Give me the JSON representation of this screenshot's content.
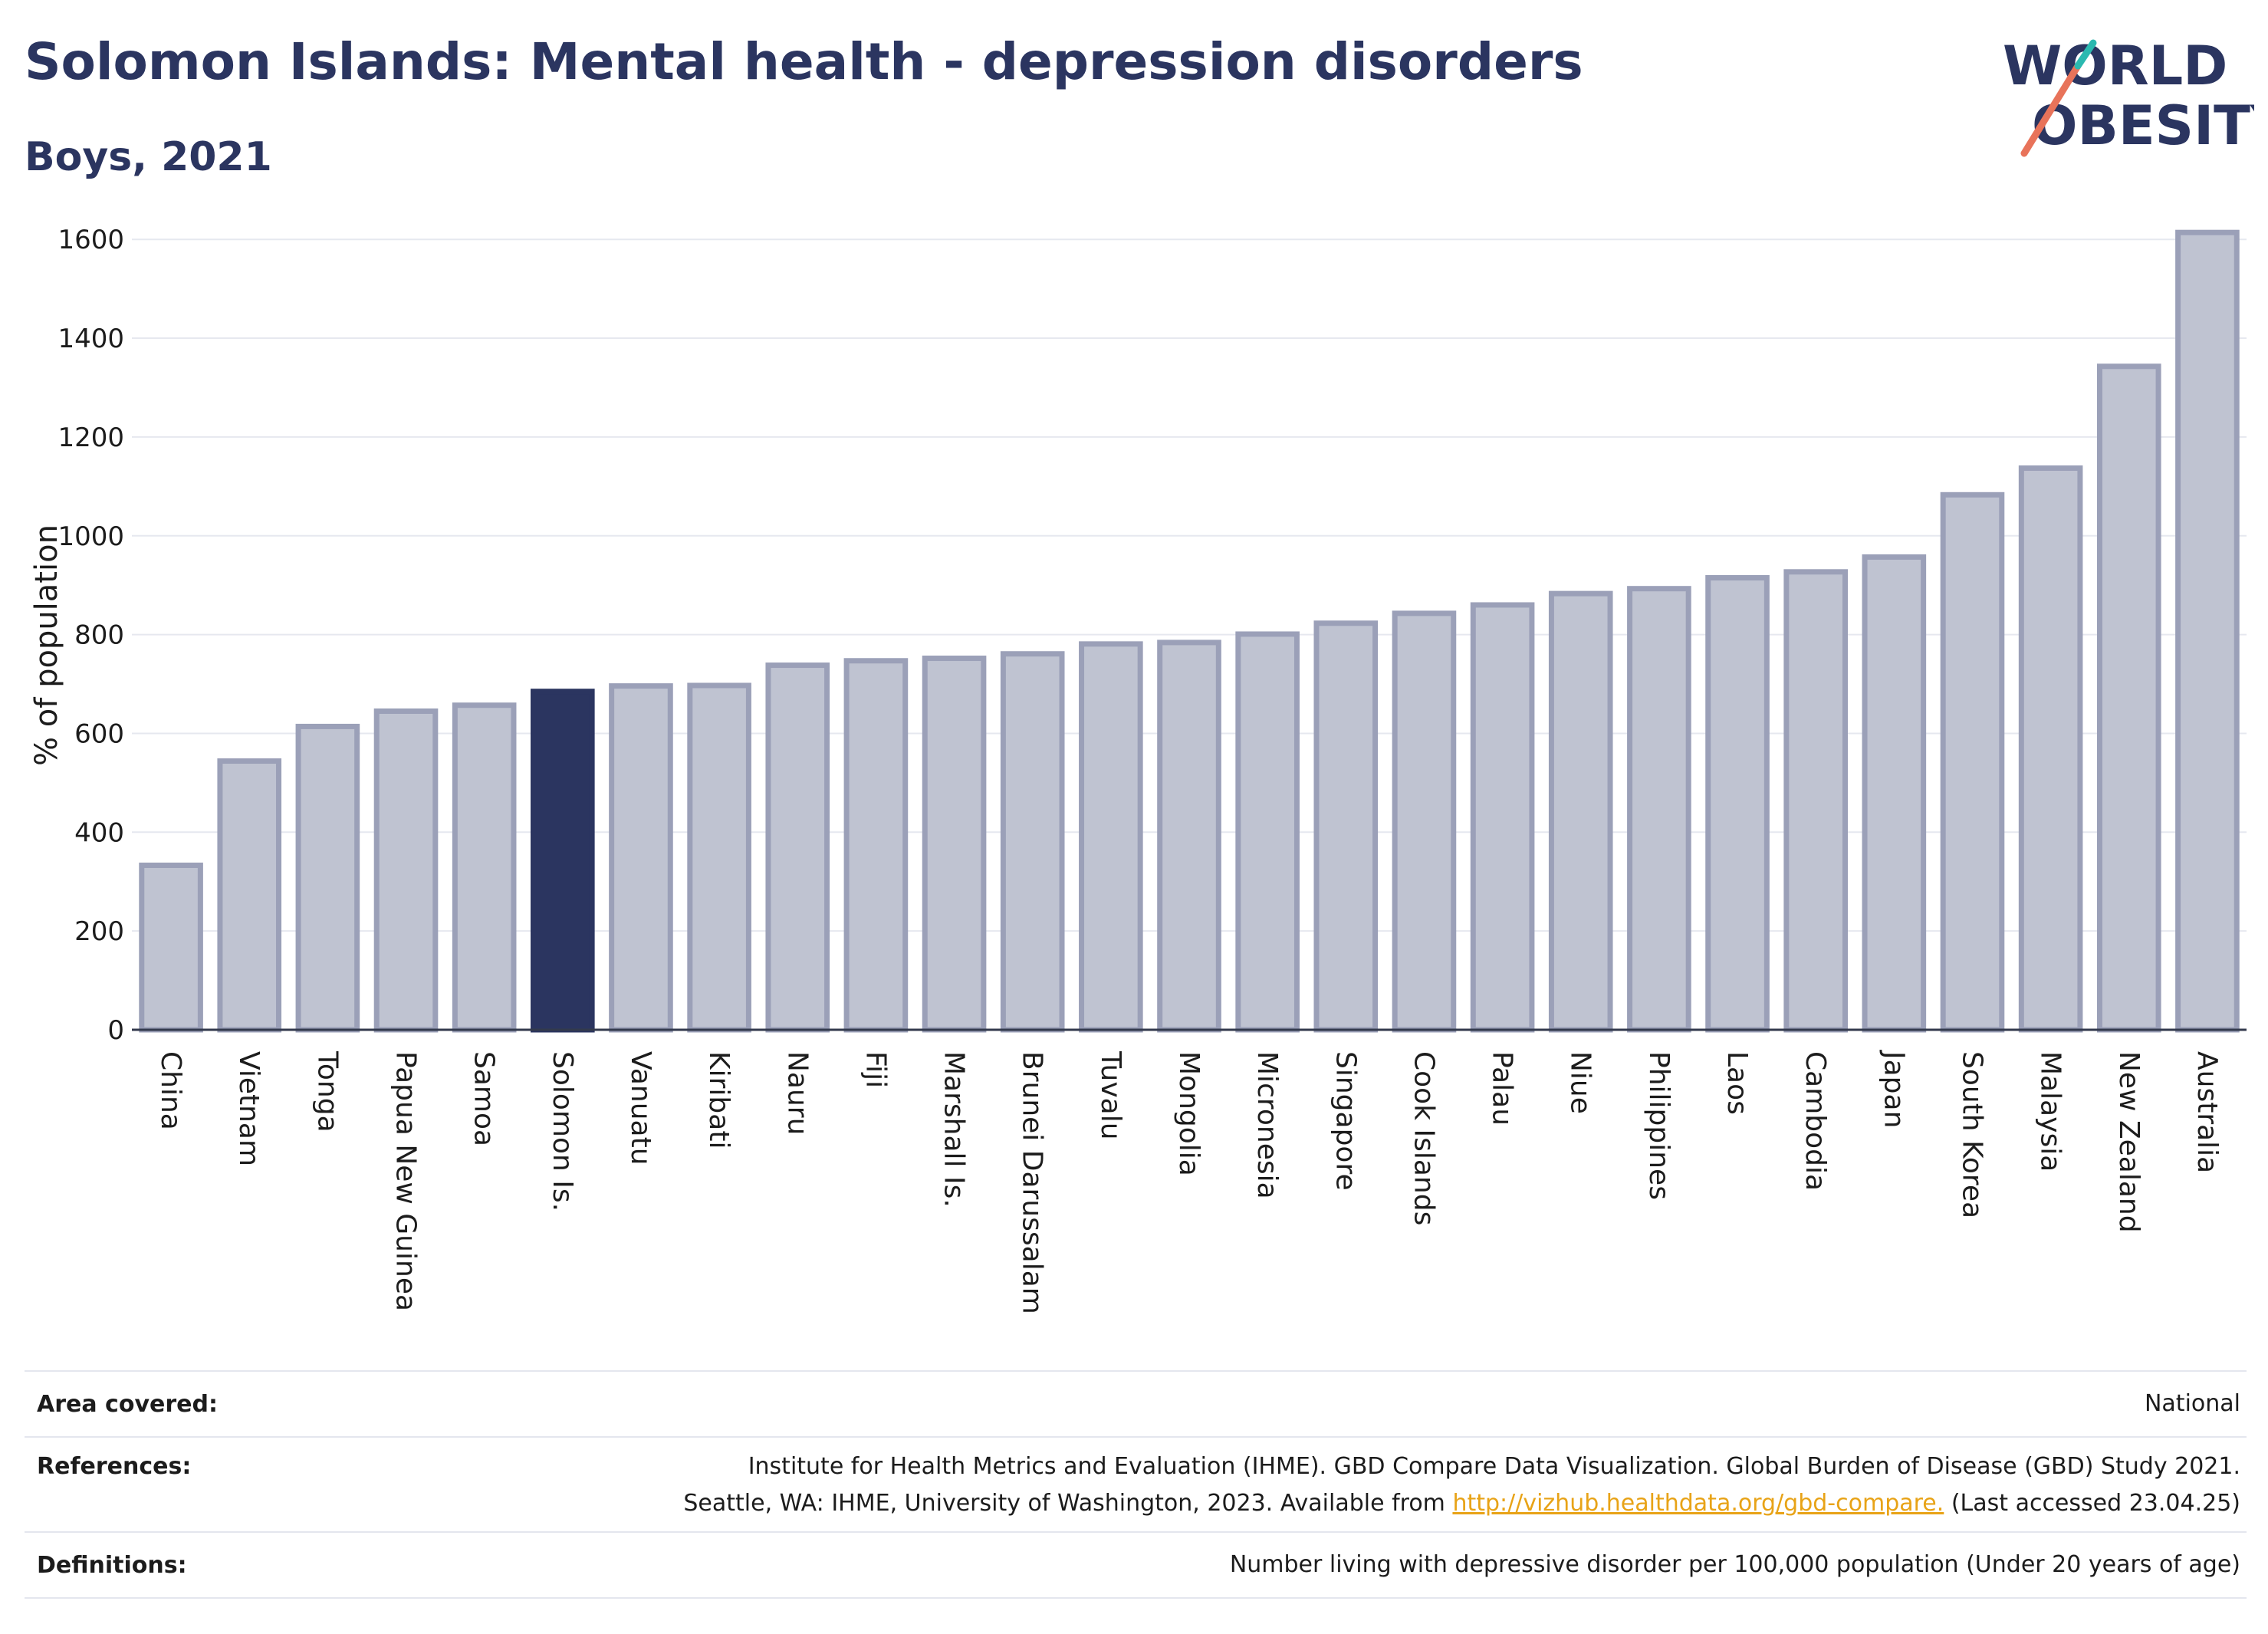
{
  "header": {
    "title": "Solomon Islands: Mental health - depression disorders",
    "subtitle": "Boys, 2021"
  },
  "logo": {
    "line1": "WORLD",
    "line2": "OBESITY",
    "accent_color": "#e8735a",
    "accent_color2": "#2bb9b0"
  },
  "colors": {
    "bar": "#bfc3d1",
    "bar_stroke": "#9ba0b8",
    "highlight": "#2b3560"
  },
  "chart_data": {
    "type": "bar",
    "title": "Solomon Islands: Mental health - depression disorders",
    "subtitle": "Boys, 2021",
    "ylabel": "% of population",
    "xlabel": "",
    "ylim": [
      0,
      1650
    ],
    "yticks": [
      0,
      200,
      400,
      600,
      800,
      1000,
      1200,
      1400,
      1600
    ],
    "grid": true,
    "highlight": "Solomon Is.",
    "categories": [
      "China",
      "Vietnam",
      "Tonga",
      "Papua New Guinea",
      "Samoa",
      "Solomon Is.",
      "Vanuatu",
      "Kiribati",
      "Nauru",
      "Fiji",
      "Marshall Is.",
      "Brunei Darussalam",
      "Tuvalu",
      "Mongolia",
      "Micronesia",
      "Singapore",
      "Cook Islands",
      "Palau",
      "Niue",
      "Philippines",
      "Laos",
      "Cambodia",
      "Japan",
      "South Korea",
      "Malaysia",
      "New Zealand",
      "Australia"
    ],
    "values": [
      333,
      544,
      614,
      645,
      657,
      685,
      696,
      697,
      738,
      747,
      752,
      761,
      781,
      784,
      801,
      823,
      843,
      860,
      883,
      893,
      915,
      927,
      957,
      1083,
      1137,
      1343,
      1614
    ]
  },
  "info": {
    "area_label": "Area covered:",
    "area_value": "National",
    "references_label": "References:",
    "references_line1": "Institute for Health Metrics and Evaluation (IHME). GBD Compare Data Visualization. Global Burden of Disease (GBD) Study 2021.",
    "references_line2_pre": "Seattle, WA: IHME, University of Washington, 2023. Available from ",
    "references_link": "http://vizhub.healthdata.org/gbd-compare.",
    "references_line2_post": " (Last accessed 23.04.25)",
    "definitions_label": "Definitions:",
    "definitions_value": "Number living with depressive disorder per 100,000 population (Under 20 years of age)"
  }
}
